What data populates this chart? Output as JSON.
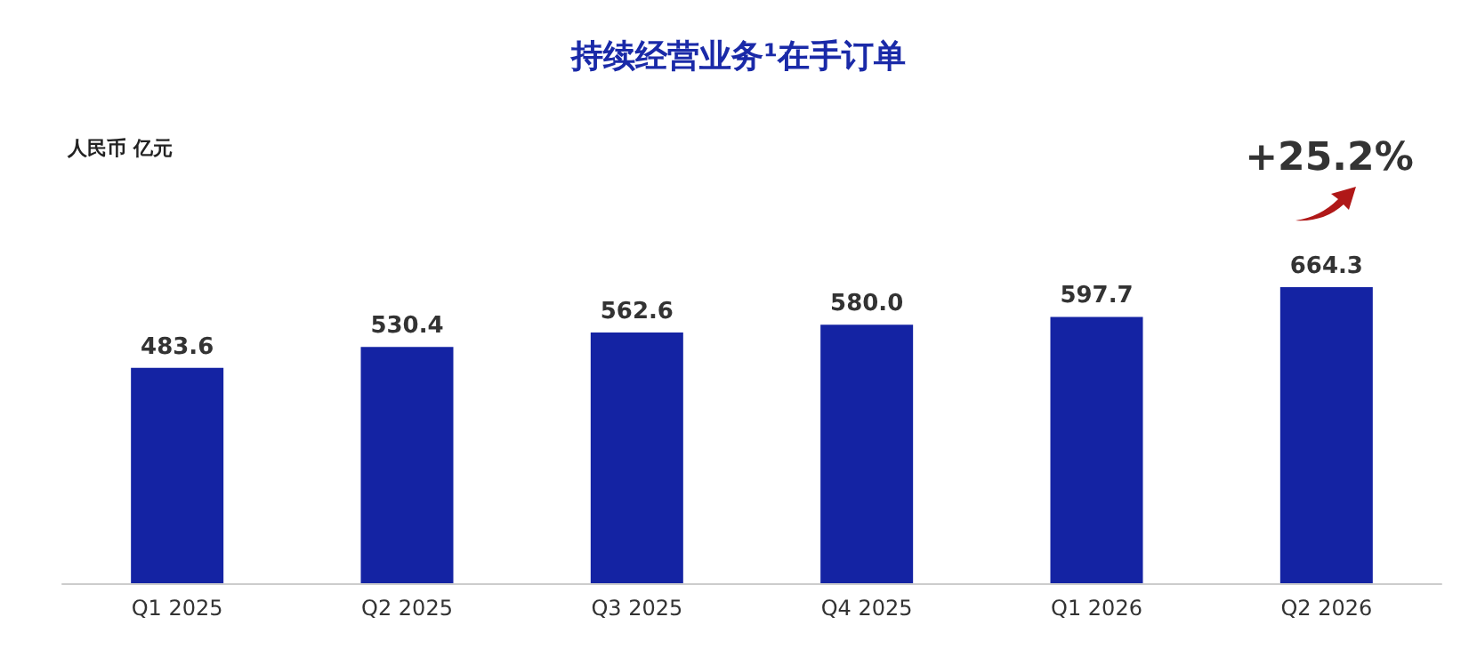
{
  "chart_data": {
    "type": "bar",
    "title": "持续经营业务¹在手订单",
    "categories": [
      "Q1 2025",
      "Q2 2025",
      "Q3 2025",
      "Q4 2025",
      "Q1 2026",
      "Q2 2026"
    ],
    "values": [
      483.6,
      530.4,
      562.6,
      580.0,
      597.7,
      664.3
    ],
    "color": "#1423a3",
    "value_labels": [
      "483.6",
      "530.4",
      "562.6",
      "580.0",
      "597.7",
      "664.3"
    ],
    "annotations": [
      "人民币 亿元",
      "+25.2%"
    ]
  }
}
